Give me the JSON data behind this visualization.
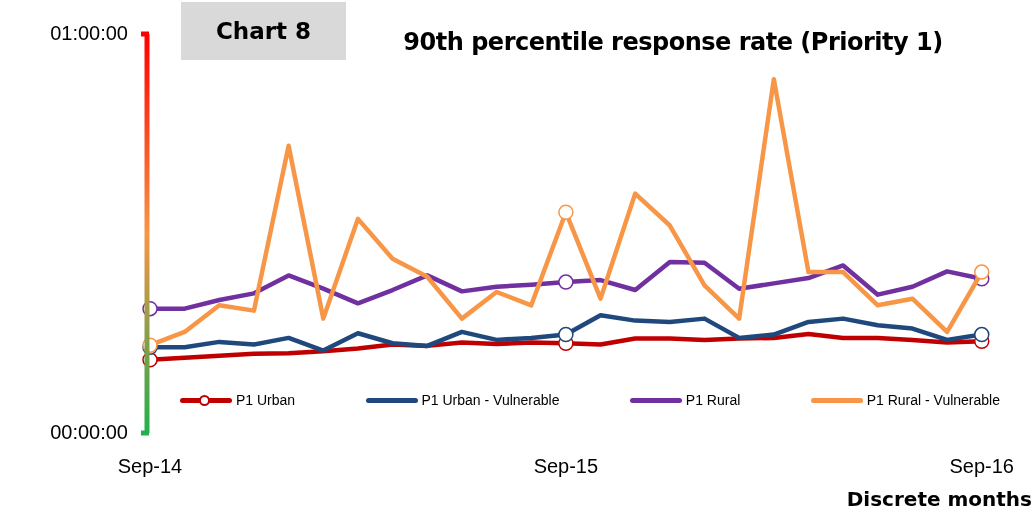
{
  "chart_data": {
    "type": "line",
    "title": "90th percentile response rate (Priority 1)",
    "xlabel": "Discrete months",
    "annotations": [
      "Chart 8"
    ],
    "categories": [
      "Sep-14",
      null,
      null,
      null,
      null,
      null,
      null,
      null,
      null,
      null,
      null,
      null,
      "Sep-15",
      null,
      null,
      null,
      null,
      null,
      null,
      null,
      null,
      null,
      null,
      null,
      "Sep-16"
    ],
    "ylim": [
      0,
      60
    ],
    "yticks": [
      {
        "value": 0,
        "label": "00:00:00"
      },
      {
        "value": 60,
        "label": "01:00:00"
      }
    ],
    "grid": false,
    "legend": "bottom",
    "line_style": "solid",
    "series": [
      {
        "name": "P1 Urban",
        "color": "#c00000",
        "values": [
          11.0,
          11.3,
          11.6,
          11.9,
          12.0,
          12.3,
          12.7,
          13.3,
          13.1,
          13.6,
          13.4,
          13.6,
          13.5,
          13.3,
          14.2,
          14.2,
          14.0,
          14.2,
          14.3,
          14.9,
          14.3,
          14.3,
          14.0,
          13.6,
          13.8
        ]
      },
      {
        "name": "P1 Urban - Vulnerable",
        "color": "#1f497d",
        "values": [
          12.9,
          12.9,
          13.7,
          13.3,
          14.3,
          12.4,
          15.0,
          13.5,
          13.1,
          15.2,
          14.0,
          14.3,
          14.8,
          17.7,
          16.9,
          16.7,
          17.2,
          14.3,
          14.8,
          16.7,
          17.2,
          16.2,
          15.7,
          14.0,
          14.8
        ]
      },
      {
        "name": "P1 Rural",
        "color": "#7030a0",
        "values": [
          18.7,
          18.7,
          20.0,
          21.0,
          23.7,
          21.7,
          19.5,
          21.5,
          23.7,
          21.3,
          22.0,
          22.3,
          22.7,
          23.0,
          21.5,
          25.7,
          25.6,
          21.7,
          22.5,
          23.3,
          25.2,
          20.8,
          22.0,
          24.3,
          23.2
        ]
      },
      {
        "name": "P1 Rural - Vulnerable",
        "color": "#f79646",
        "values": [
          13.2,
          15.2,
          19.2,
          18.4,
          43.2,
          17.2,
          32.2,
          26.2,
          23.5,
          17.2,
          21.2,
          19.2,
          33.2,
          20.2,
          36.0,
          31.2,
          22.2,
          17.2,
          53.2,
          24.2,
          24.2,
          19.2,
          20.2,
          15.2,
          24.2
        ]
      }
    ]
  }
}
